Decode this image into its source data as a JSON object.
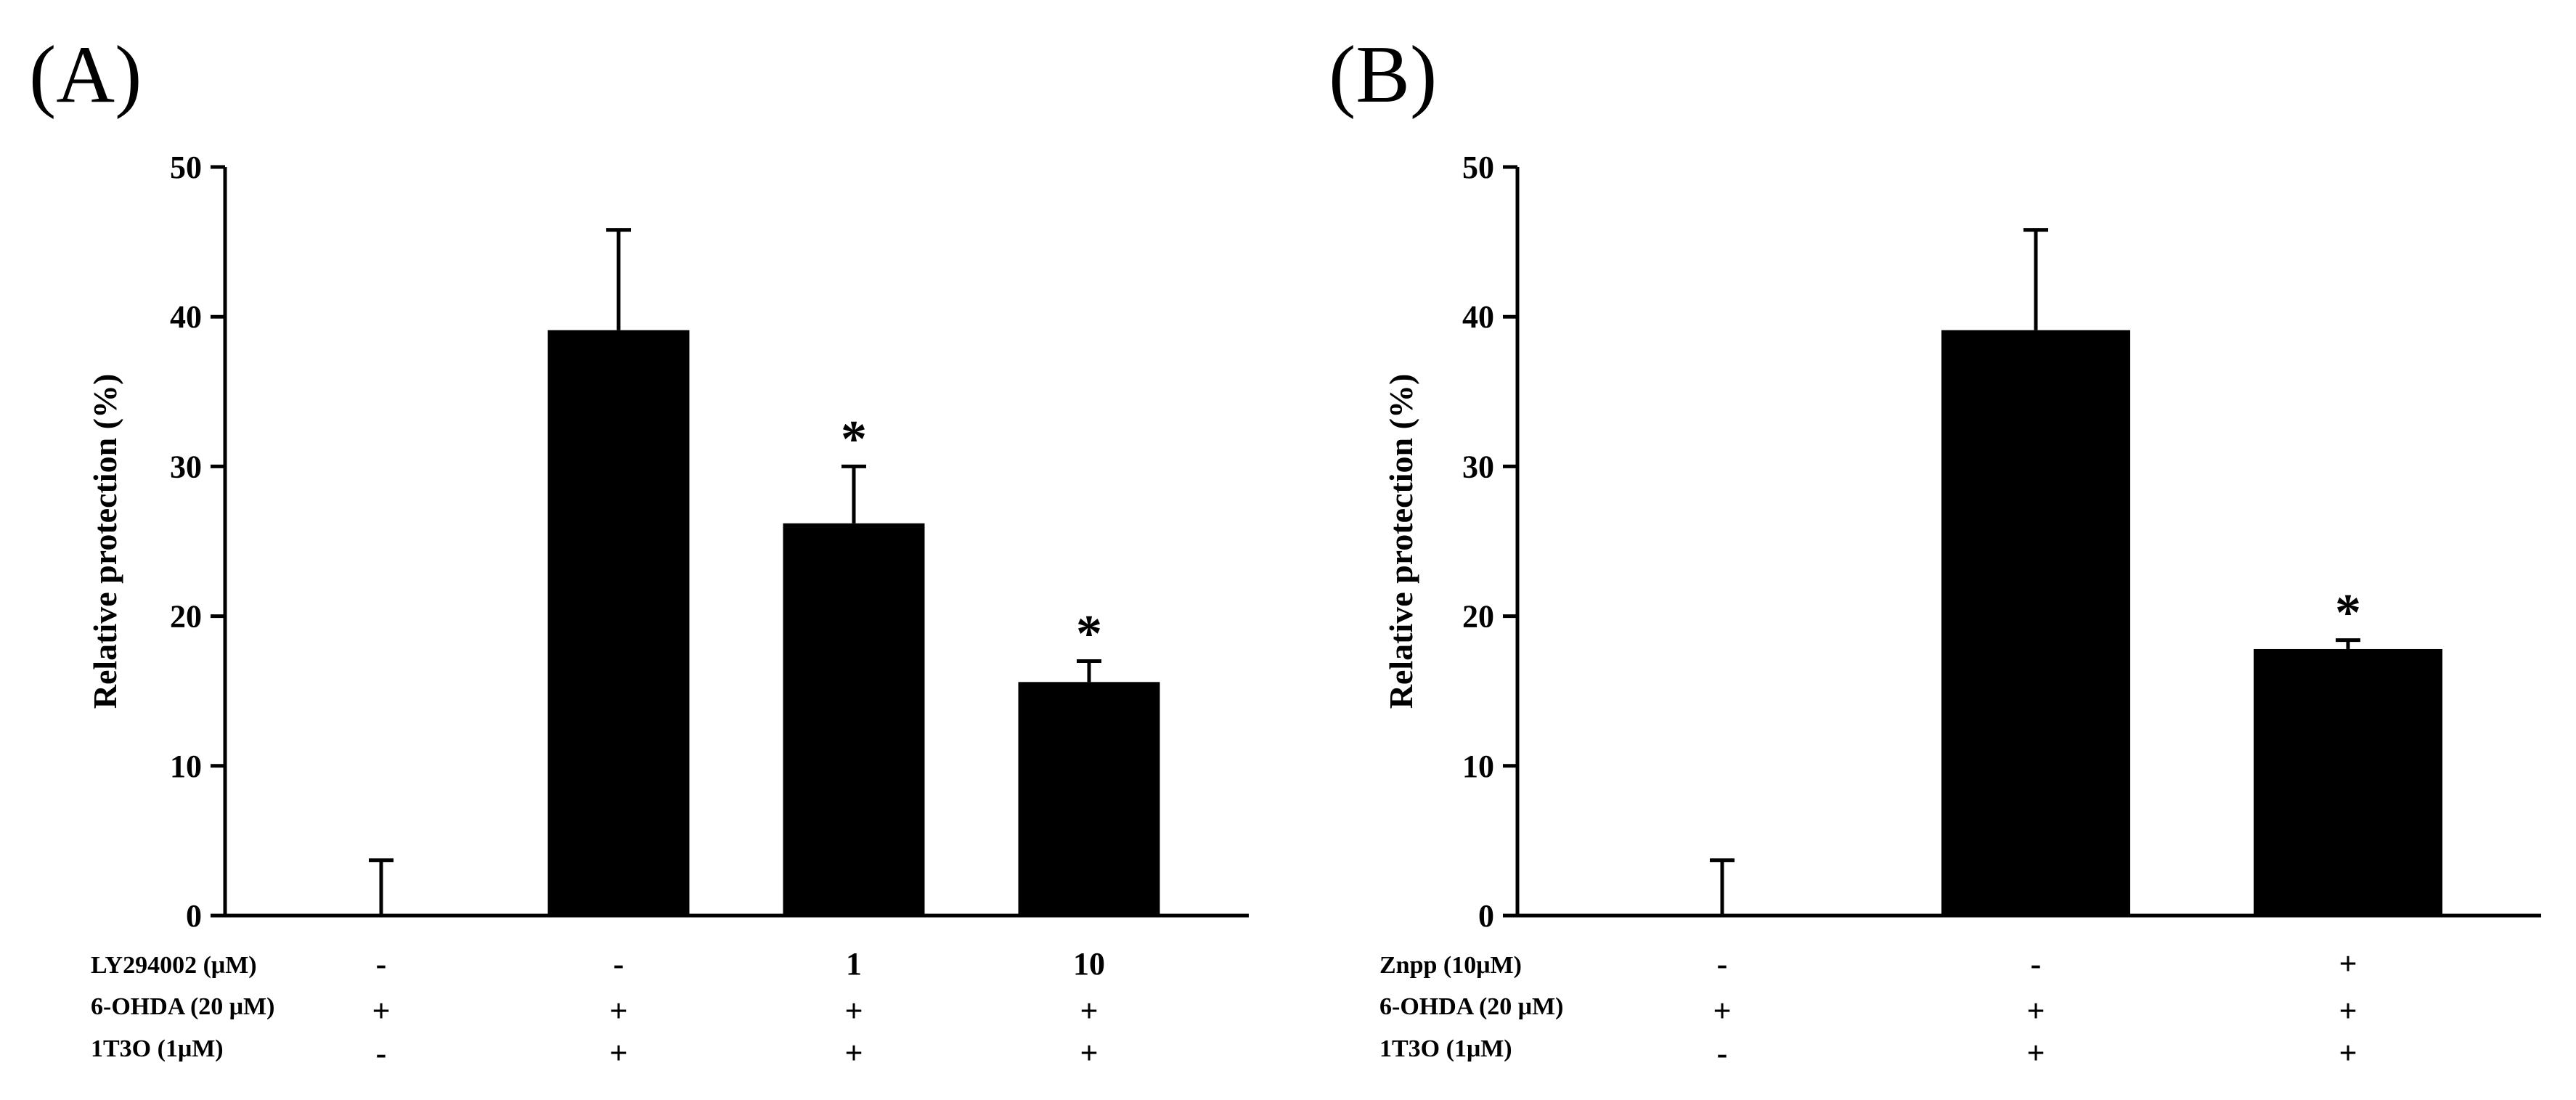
{
  "chart_data": [
    {
      "type": "bar",
      "panel_label": "(A)",
      "ylabel": "Relative protection (%)",
      "ylim": [
        0,
        50
      ],
      "yticks": [
        0,
        10,
        20,
        30,
        40,
        50
      ],
      "bars": [
        {
          "value": 0,
          "error": 3.7,
          "significant": false
        },
        {
          "value": 39.1,
          "error": 6.7,
          "significant": false
        },
        {
          "value": 26.2,
          "error": 3.8,
          "significant": true
        },
        {
          "value": 15.6,
          "error": 1.4,
          "significant": true
        }
      ],
      "significance_symbol": "*",
      "condition_rows": [
        {
          "label": "LY294002 (μM)",
          "values": [
            "-",
            "-",
            "1",
            "10"
          ]
        },
        {
          "label": "6-OHDA (20 μM)",
          "values": [
            "+",
            "+",
            "+",
            "+"
          ]
        },
        {
          "label": "1T3O (1μM)",
          "values": [
            "-",
            "+",
            "+",
            "+"
          ]
        }
      ]
    },
    {
      "type": "bar",
      "panel_label": "(B)",
      "ylabel": "Relative protection (%)",
      "ylim": [
        0,
        50
      ],
      "yticks": [
        0,
        10,
        20,
        30,
        40,
        50
      ],
      "bars": [
        {
          "value": 0,
          "error": 3.7,
          "significant": false
        },
        {
          "value": 39.1,
          "error": 6.7,
          "significant": false
        },
        {
          "value": 17.8,
          "error": 0.6,
          "significant": true
        }
      ],
      "significance_symbol": "*",
      "condition_rows": [
        {
          "label": "Znpp (10μM)",
          "values": [
            "-",
            "-",
            "+"
          ]
        },
        {
          "label": "6-OHDA (20 μM)",
          "values": [
            "+",
            "+",
            "+"
          ]
        },
        {
          "label": "1T3O (1μM)",
          "values": [
            "-",
            "+",
            "+"
          ]
        }
      ]
    }
  ]
}
